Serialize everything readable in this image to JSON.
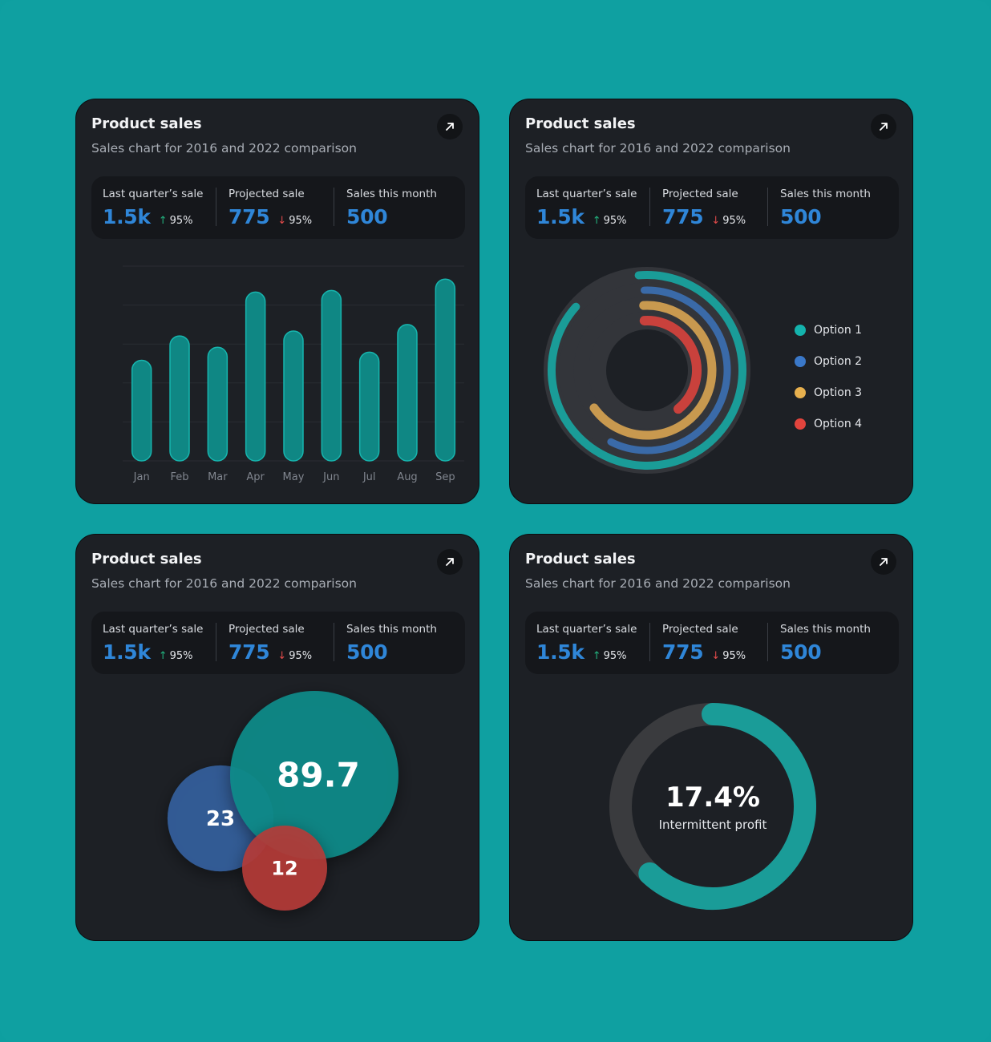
{
  "cards": [
    {
      "title": "Product sales",
      "subtitle": "Sales chart for 2016 and 2022 comparison",
      "stats": [
        {
          "label": "Last quarter’s sale",
          "value": "1.5k",
          "delta": "95%",
          "direction": "up"
        },
        {
          "label": "Projected sale",
          "value": "775",
          "delta": "95%",
          "direction": "down"
        },
        {
          "label": "Sales this month",
          "value": "500"
        }
      ]
    },
    {
      "title": "Product sales",
      "subtitle": "Sales chart for 2016 and 2022 comparison",
      "stats": [
        {
          "label": "Last quarter’s sale",
          "value": "1.5k",
          "delta": "95%",
          "direction": "up"
        },
        {
          "label": "Projected sale",
          "value": "775",
          "delta": "95%",
          "direction": "down"
        },
        {
          "label": "Sales this month",
          "value": "500"
        }
      ]
    },
    {
      "title": "Product sales",
      "subtitle": "Sales chart for 2016 and 2022 comparison",
      "stats": [
        {
          "label": "Last quarter’s sale",
          "value": "1.5k",
          "delta": "95%",
          "direction": "up"
        },
        {
          "label": "Projected sale",
          "value": "775",
          "delta": "95%",
          "direction": "down"
        },
        {
          "label": "Sales this month",
          "value": "500"
        }
      ]
    },
    {
      "title": "Product sales",
      "subtitle": "Sales chart for 2016 and 2022 comparison",
      "stats": [
        {
          "label": "Last quarter’s sale",
          "value": "1.5k",
          "delta": "95%",
          "direction": "up"
        },
        {
          "label": "Projected sale",
          "value": "775",
          "delta": "95%",
          "direction": "down"
        },
        {
          "label": "Sales this month",
          "value": "500"
        }
      ]
    }
  ],
  "colors": {
    "background": "#0fa0a1",
    "card": "#1d2025",
    "accent_blue": "#2f86d8",
    "teal": "#1a9c98",
    "blue": "#3a6aa8",
    "gold": "#c8994f",
    "red": "#c9413c",
    "track": "#34363b"
  },
  "icons": {
    "open": "arrow-up-right-icon",
    "up": "arrow-up-icon",
    "down": "arrow-down-icon"
  },
  "chart_data": [
    {
      "type": "bar",
      "categories": [
        "Jan",
        "Feb",
        "Mar",
        "Apr",
        "May",
        "Jun",
        "Jul",
        "Aug",
        "Sep"
      ],
      "values": [
        62,
        77,
        70,
        104,
        80,
        105,
        67,
        84,
        112
      ],
      "ylim": [
        0,
        120
      ],
      "grid": true
    },
    {
      "type": "pie",
      "subtype": "radial-rings",
      "series": [
        {
          "name": "Option 1",
          "value": 88,
          "color": "#1a9c98"
        },
        {
          "name": "Option 2",
          "value": 58,
          "color": "#3a6aa8"
        },
        {
          "name": "Option 3",
          "value": 66,
          "color": "#c8994f"
        },
        {
          "name": "Option 4",
          "value": 40,
          "color": "#c9413c"
        }
      ]
    },
    {
      "type": "scatter",
      "subtype": "bubble",
      "series": [
        {
          "value": 89.7,
          "label": "89.7",
          "color": "#0b8b89"
        },
        {
          "value": 23,
          "label": "23",
          "color": "#33609e"
        },
        {
          "value": 12,
          "label": "12",
          "color": "#b63c39"
        }
      ]
    },
    {
      "type": "pie",
      "subtype": "donut",
      "value": 17.4,
      "center_value": "17.4%",
      "center_label": "Intermittent profit",
      "arc_fraction": 0.62
    }
  ]
}
